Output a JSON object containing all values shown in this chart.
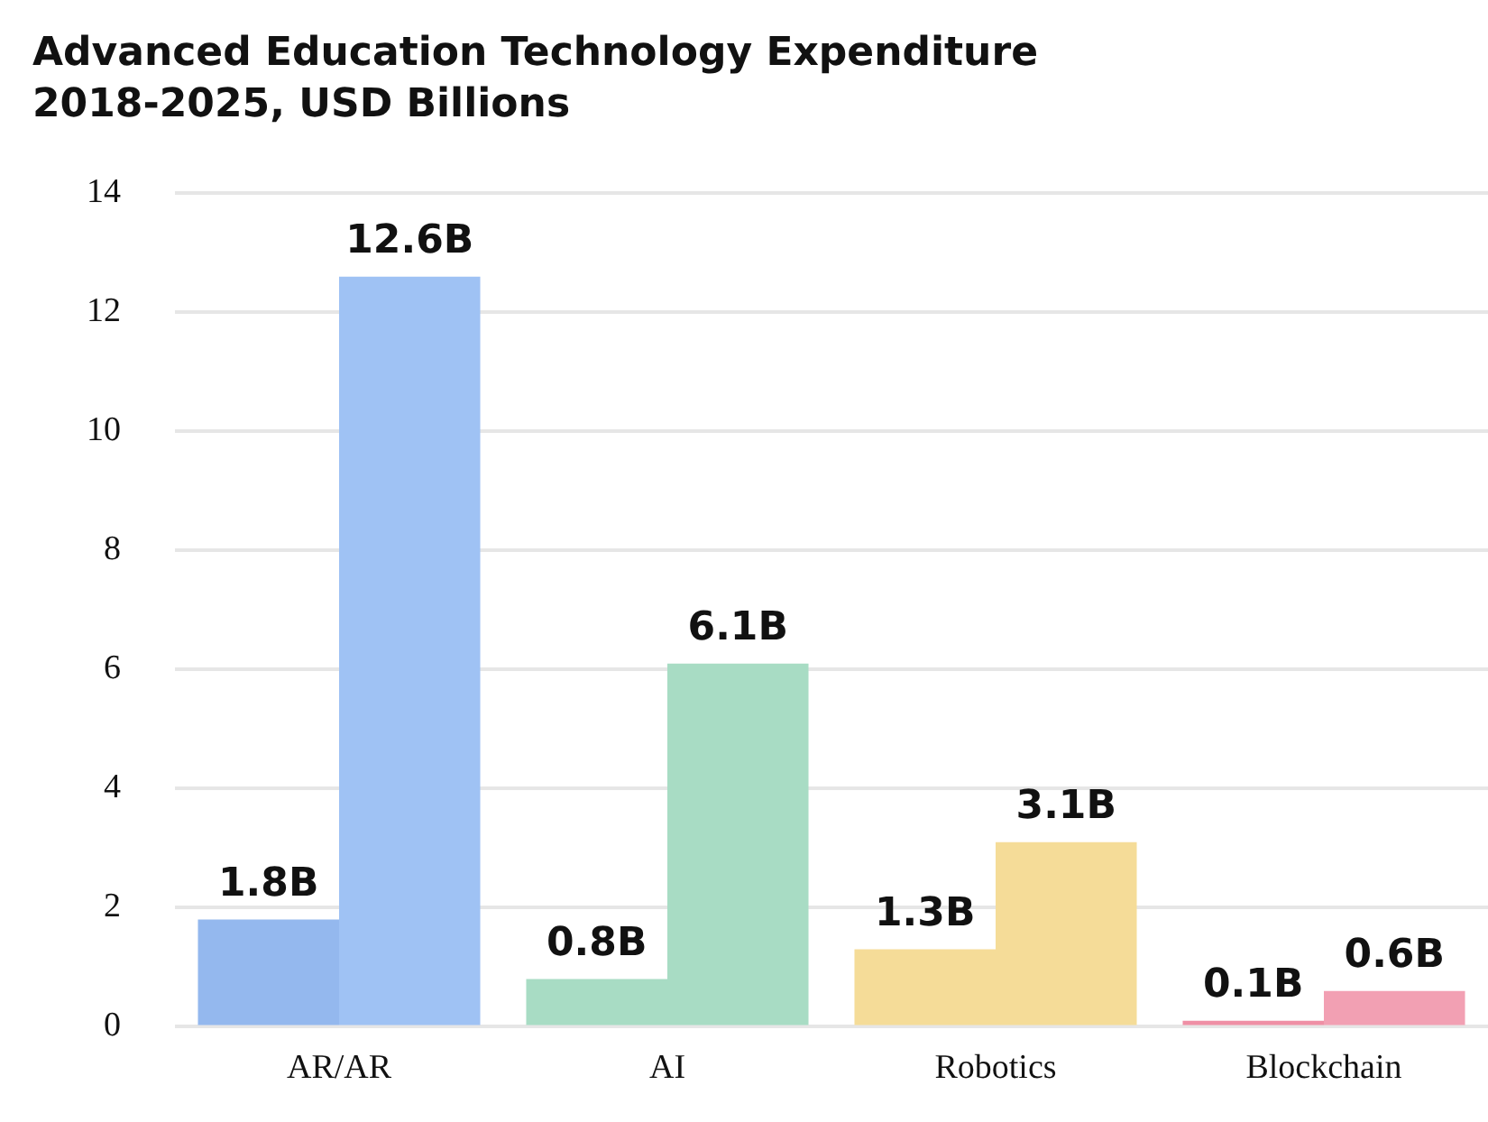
{
  "chart_data": {
    "type": "bar",
    "title": "Advanced Education Technology Expenditure",
    "subtitle": "2018-2025, USD Billions",
    "categories": [
      "AR/AR",
      "AI",
      "Robotics",
      "Blockchain"
    ],
    "series": [
      {
        "colors": [
          "#94b8ee",
          "#a8dcc4",
          "#f5dc98",
          "#ef8fa5"
        ],
        "values": [
          1.8,
          0.8,
          1.3,
          0.1
        ],
        "value_labels": [
          "1.8B",
          "0.8B",
          "1.3B",
          "0.1B"
        ]
      },
      {
        "colors": [
          "#9fc2f4",
          "#a8dcc4",
          "#f5dc98",
          "#f2a0b3"
        ],
        "values": [
          12.6,
          6.1,
          3.1,
          0.6
        ],
        "value_labels": [
          "12.6B",
          "6.1B",
          "3.1B",
          "0.6B"
        ]
      }
    ],
    "ylim": [
      0,
      14
    ],
    "yticks": [
      0,
      2,
      4,
      6,
      8,
      10,
      12,
      14
    ],
    "grid": "y",
    "legend": false
  }
}
